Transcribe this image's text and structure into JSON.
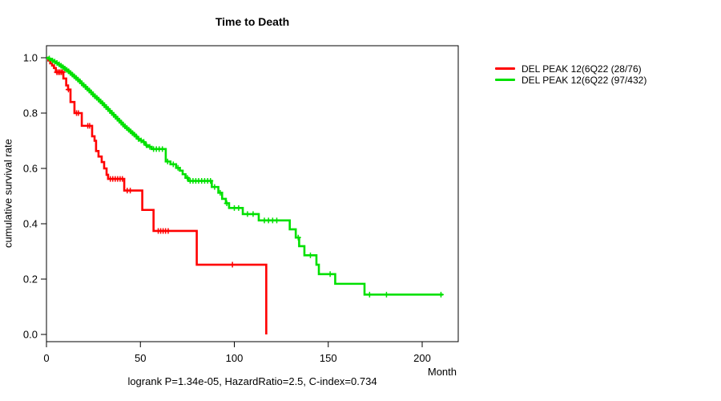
{
  "title": "Time to Death",
  "caption": "logrank P=1.34e-05, HazardRatio=2.5, C-index=0.734",
  "chart_data": {
    "type": "line",
    "subtype": "kaplan-meier-step",
    "title": "Time to Death",
    "xlabel": "Month",
    "ylabel": "cumulative survival rate",
    "xlim": [
      0,
      219
    ],
    "ylim": [
      0.0,
      1.0
    ],
    "x_ticks": [
      0,
      50,
      100,
      150,
      200
    ],
    "y_ticks": [
      "0.0",
      "0.2",
      "0.4",
      "0.6",
      "0.8",
      "1.0"
    ],
    "y_tick_values": [
      0.0,
      0.2,
      0.4,
      0.6,
      0.8,
      1.0
    ],
    "grid": false,
    "legend_position": "right-outside",
    "series": [
      {
        "key": "red",
        "name": "DEL PEAK 12(6Q22 (28/76)",
        "color": "#ff0000",
        "events_ratio": "28/76",
        "steps": [
          [
            0,
            1.0
          ],
          [
            1,
            0.99
          ],
          [
            2,
            0.98
          ],
          [
            3,
            0.972
          ],
          [
            4,
            0.963
          ],
          [
            5,
            0.948
          ],
          [
            9,
            0.925
          ],
          [
            10.5,
            0.9
          ],
          [
            11.5,
            0.885
          ],
          [
            12.8,
            0.84
          ],
          [
            14.9,
            0.8
          ],
          [
            18.8,
            0.754
          ],
          [
            24.3,
            0.716
          ],
          [
            25.6,
            0.7
          ],
          [
            26.4,
            0.663
          ],
          [
            27.7,
            0.643
          ],
          [
            29.4,
            0.623
          ],
          [
            30.7,
            0.6
          ],
          [
            32,
            0.577
          ],
          [
            32.8,
            0.562
          ],
          [
            41.4,
            0.52
          ],
          [
            51,
            0.45
          ],
          [
            57,
            0.374
          ],
          [
            80,
            0.252
          ],
          [
            117,
            0.0
          ]
        ],
        "censor_months": [
          5.5,
          6.3,
          7.1,
          7.9,
          8.7,
          11.7,
          16,
          17,
          22,
          23,
          34,
          35.3,
          36.6,
          37.9,
          39.2,
          40.4,
          43,
          44.6,
          59.5,
          60.8,
          62.1,
          63.4,
          64.8,
          99
        ]
      },
      {
        "key": "green",
        "name": "DEL PEAK 12(6Q22 (97/432)",
        "color": "#00e000",
        "events_ratio": "97/432",
        "steps": [
          [
            0,
            1.0
          ],
          [
            1,
            0.997
          ],
          [
            2,
            0.994
          ],
          [
            3,
            0.99
          ],
          [
            4,
            0.986
          ],
          [
            5,
            0.981
          ],
          [
            6,
            0.976
          ],
          [
            7,
            0.971
          ],
          [
            8,
            0.966
          ],
          [
            9,
            0.961
          ],
          [
            10,
            0.956
          ],
          [
            11,
            0.951
          ],
          [
            12,
            0.945
          ],
          [
            13,
            0.939
          ],
          [
            14,
            0.933
          ],
          [
            15,
            0.927
          ],
          [
            16,
            0.921
          ],
          [
            17,
            0.915
          ],
          [
            18,
            0.908
          ],
          [
            19,
            0.901
          ],
          [
            20,
            0.895
          ],
          [
            21,
            0.888
          ],
          [
            22,
            0.882
          ],
          [
            23,
            0.875
          ],
          [
            24,
            0.868
          ],
          [
            25,
            0.861
          ],
          [
            26,
            0.855
          ],
          [
            27,
            0.849
          ],
          [
            28,
            0.842
          ],
          [
            29,
            0.836
          ],
          [
            30,
            0.829
          ],
          [
            31,
            0.822
          ],
          [
            32,
            0.815
          ],
          [
            33,
            0.808
          ],
          [
            34,
            0.801
          ],
          [
            35,
            0.794
          ],
          [
            36,
            0.787
          ],
          [
            37,
            0.78
          ],
          [
            38,
            0.773
          ],
          [
            39,
            0.766
          ],
          [
            40,
            0.759
          ],
          [
            41,
            0.752
          ],
          [
            42,
            0.746
          ],
          [
            43,
            0.74
          ],
          [
            44,
            0.734
          ],
          [
            45,
            0.728
          ],
          [
            46,
            0.722
          ],
          [
            47,
            0.716
          ],
          [
            48,
            0.711
          ],
          [
            49,
            0.706
          ],
          [
            50,
            0.701
          ],
          [
            51,
            0.696
          ],
          [
            52,
            0.69
          ],
          [
            53,
            0.684
          ],
          [
            54,
            0.678
          ],
          [
            56,
            0.67
          ],
          [
            63.5,
            0.625
          ],
          [
            66,
            0.615
          ],
          [
            69,
            0.602
          ],
          [
            71,
            0.592
          ],
          [
            72.5,
            0.579
          ],
          [
            74,
            0.566
          ],
          [
            75.5,
            0.555
          ],
          [
            88,
            0.533
          ],
          [
            91.5,
            0.512
          ],
          [
            93.5,
            0.49
          ],
          [
            95.5,
            0.474
          ],
          [
            97.2,
            0.457
          ],
          [
            104.5,
            0.435
          ],
          [
            113,
            0.412
          ],
          [
            129.5,
            0.38
          ],
          [
            132.7,
            0.35
          ],
          [
            134.5,
            0.319
          ],
          [
            137.3,
            0.286
          ],
          [
            143.7,
            0.252
          ],
          [
            145,
            0.218
          ],
          [
            153.7,
            0.183
          ],
          [
            169.3,
            0.144
          ],
          [
            211,
            0.144
          ]
        ],
        "censor_months": [
          1.5,
          3.2,
          4.4,
          5.6,
          6.8,
          7.8,
          8.8,
          9.8,
          10.8,
          11.8,
          12.8,
          13.8,
          14.8,
          15.8,
          16.8,
          17.8,
          18.8,
          19.8,
          20.8,
          21.8,
          22.8,
          23.8,
          24.8,
          25.8,
          26.8,
          27.8,
          28.8,
          29.8,
          30.8,
          31.8,
          32.8,
          33.8,
          34.8,
          35.8,
          36.8,
          37.8,
          38.8,
          39.8,
          40.8,
          41.8,
          42.8,
          43.8,
          44.8,
          45.8,
          46.8,
          47.8,
          49,
          50.4,
          51.8,
          53.2,
          55,
          57,
          58.5,
          60,
          61.7,
          64.5,
          67.5,
          70,
          75,
          76.5,
          78,
          79.5,
          81,
          82.6,
          84.2,
          85.8,
          87.3,
          89.5,
          92.5,
          96,
          100,
          102.3,
          107,
          110,
          116,
          118.2,
          120.4,
          122.6,
          134,
          140.5,
          151,
          172,
          181,
          210
        ]
      }
    ]
  }
}
